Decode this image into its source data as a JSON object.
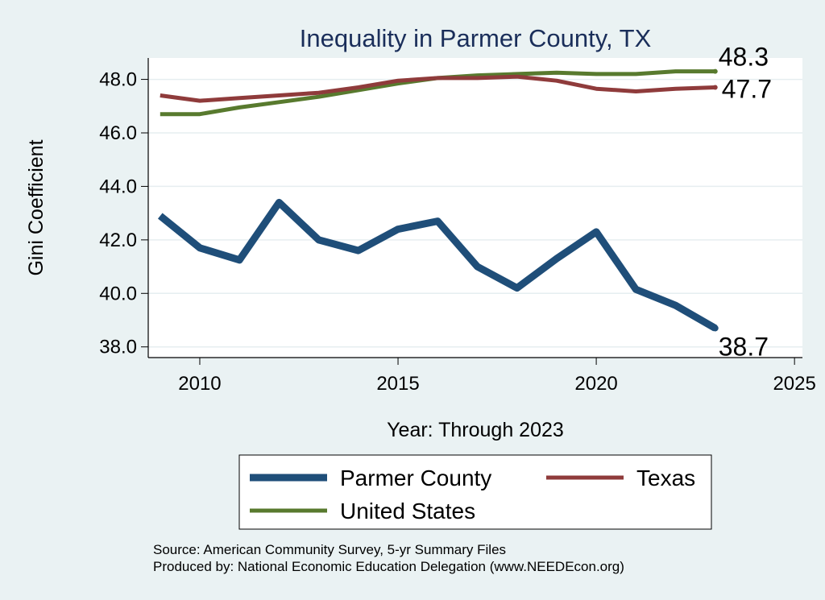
{
  "chart_data": {
    "type": "line",
    "title": "Inequality in Parmer County, TX",
    "xlabel": "Year: Through 2023",
    "ylabel": "Gini Coefficient",
    "xlim": [
      2008.7,
      2025.2
    ],
    "ylim": [
      37.6,
      48.8
    ],
    "xticks": [
      2010,
      2015,
      2020,
      2025
    ],
    "yticks": [
      38.0,
      40.0,
      42.0,
      44.0,
      46.0,
      48.0
    ],
    "ytick_labels": [
      "38.0",
      "40.0",
      "42.0",
      "44.0",
      "46.0",
      "48.0"
    ],
    "grid": true,
    "x": [
      2009,
      2010,
      2011,
      2012,
      2013,
      2014,
      2015,
      2016,
      2017,
      2018,
      2019,
      2020,
      2021,
      2022,
      2023
    ],
    "series": [
      {
        "name": "Parmer County",
        "color": "#1f4e79",
        "values": [
          42.9,
          41.7,
          41.25,
          43.4,
          42.0,
          41.6,
          42.4,
          42.7,
          41.0,
          40.2,
          41.3,
          42.3,
          40.15,
          39.55,
          38.7
        ],
        "end_label": "38.7"
      },
      {
        "name": "Texas",
        "color": "#8f3b3b",
        "values": [
          47.4,
          47.2,
          47.3,
          47.4,
          47.5,
          47.7,
          47.95,
          48.05,
          48.05,
          48.1,
          47.95,
          47.65,
          47.55,
          47.65,
          47.7
        ],
        "end_label": "47.7"
      },
      {
        "name": "United States",
        "color": "#587a2e",
        "values": [
          46.7,
          46.7,
          46.95,
          47.15,
          47.35,
          47.6,
          47.85,
          48.05,
          48.15,
          48.2,
          48.25,
          48.2,
          48.2,
          48.3,
          48.3
        ],
        "end_label": "48.3"
      }
    ],
    "legend": {
      "position": "bottom",
      "columns": 2
    }
  },
  "source_lines": [
    "Source: American Community Survey, 5-yr Summary Files",
    "Produced by: National Economic Education Delegation (www.NEEDEcon.org)"
  ]
}
